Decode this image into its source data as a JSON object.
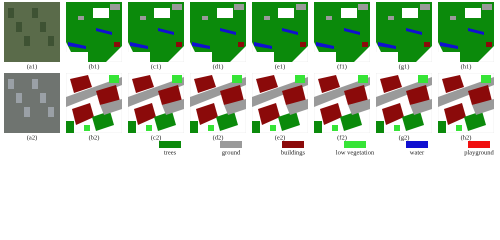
{
  "figure": {
    "rows": [
      {
        "panels": [
          "(a1)",
          "(b1)",
          "(c1)",
          "(d1)",
          "(e1)",
          "(f1)",
          "(g1)",
          "(h1)"
        ]
      },
      {
        "panels": [
          "(a2)",
          "(b2)",
          "(c2)",
          "(d2)",
          "(e2)",
          "(f2)",
          "(g2)",
          "(h2)"
        ]
      }
    ],
    "legend": [
      {
        "label": "trees",
        "color": "#0b8a0b"
      },
      {
        "label": "ground",
        "color": "#9a9a9a"
      },
      {
        "label": "buildings",
        "color": "#8b0a0a"
      },
      {
        "label": "low vegetation",
        "color": "#36e436"
      },
      {
        "label": "water",
        "color": "#1010d0"
      },
      {
        "label": "playground",
        "color": "#f01010"
      }
    ]
  }
}
